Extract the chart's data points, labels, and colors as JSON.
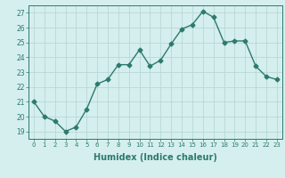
{
  "x": [
    0,
    1,
    2,
    3,
    4,
    5,
    6,
    7,
    8,
    9,
    10,
    11,
    12,
    13,
    14,
    15,
    16,
    17,
    18,
    19,
    20,
    21,
    22,
    23
  ],
  "y": [
    21.0,
    20.0,
    19.7,
    19.0,
    19.3,
    20.5,
    22.2,
    22.5,
    23.5,
    23.5,
    24.5,
    23.4,
    23.8,
    24.9,
    25.9,
    26.2,
    27.1,
    26.7,
    25.0,
    25.1,
    25.1,
    23.4,
    22.7,
    22.5
  ],
  "line_color": "#2d7a6e",
  "marker": "D",
  "marker_size": 2.5,
  "bg_color": "#d5efee",
  "grid_color": "#b8d8d4",
  "tick_color": "#2d7a6e",
  "xlabel": "Humidex (Indice chaleur)",
  "xlabel_fontsize": 7,
  "ylabel_ticks": [
    19,
    20,
    21,
    22,
    23,
    24,
    25,
    26,
    27
  ],
  "ylim": [
    18.5,
    27.5
  ],
  "xlim": [
    -0.5,
    23.5
  ]
}
